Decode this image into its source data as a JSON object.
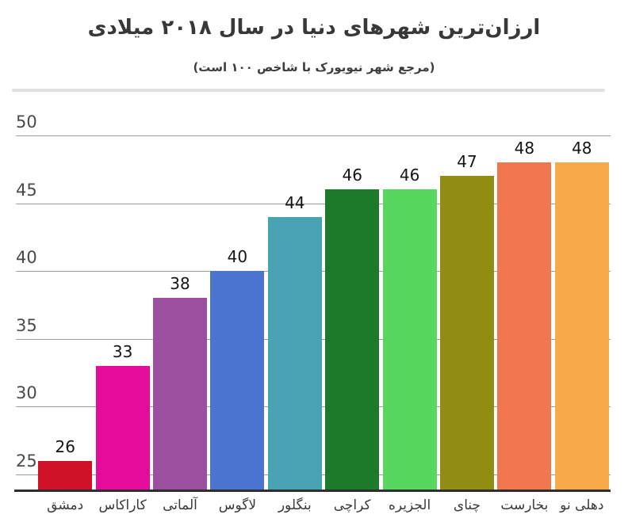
{
  "header": {
    "title": "ارزان‌ترین شهرهای دنیا در سال ۲۰۱۸ میلادی",
    "subtitle": "(مرجع شهر نیویورک با شاخص ۱۰۰ است)"
  },
  "chart_data": {
    "type": "bar",
    "title": "ارزان‌ترین شهرهای دنیا در سال ۲۰۱۸ میلادی",
    "subtitle": "(مرجع شهر نیویورک با شاخص ۱۰۰ است)",
    "categories": [
      "دمشق",
      "کاراکاس",
      "آلماتی",
      "لاگوس",
      "بنگلور",
      "کراچی",
      "الجزیره",
      "چنای",
      "بخارست",
      "دهلی نو"
    ],
    "values": [
      26,
      33,
      38,
      40,
      44,
      46,
      46,
      47,
      48,
      48
    ],
    "bar_colors": [
      "#d01228",
      "#e50c9c",
      "#9b4f9e",
      "#4a74d0",
      "#47a3b3",
      "#1e7a2b",
      "#57d75e",
      "#918c12",
      "#f1774f",
      "#f6aa4a"
    ],
    "value_labels_shown": true,
    "xlabel": "",
    "ylabel": "",
    "yticks": [
      25,
      30,
      35,
      40,
      45,
      50
    ],
    "ylim": [
      23.8,
      51.3
    ],
    "grid": true,
    "legend": "none",
    "text_direction": "rtl",
    "colors": {
      "grid_color": "#9c9c9c",
      "axis_color": "#2e2e2e",
      "tick_label_color": "#4a4a4a",
      "value_label_color": "#151515",
      "category_label_color": "#3a3a3a",
      "title_color": "#383838",
      "background": "#ffffff"
    }
  }
}
